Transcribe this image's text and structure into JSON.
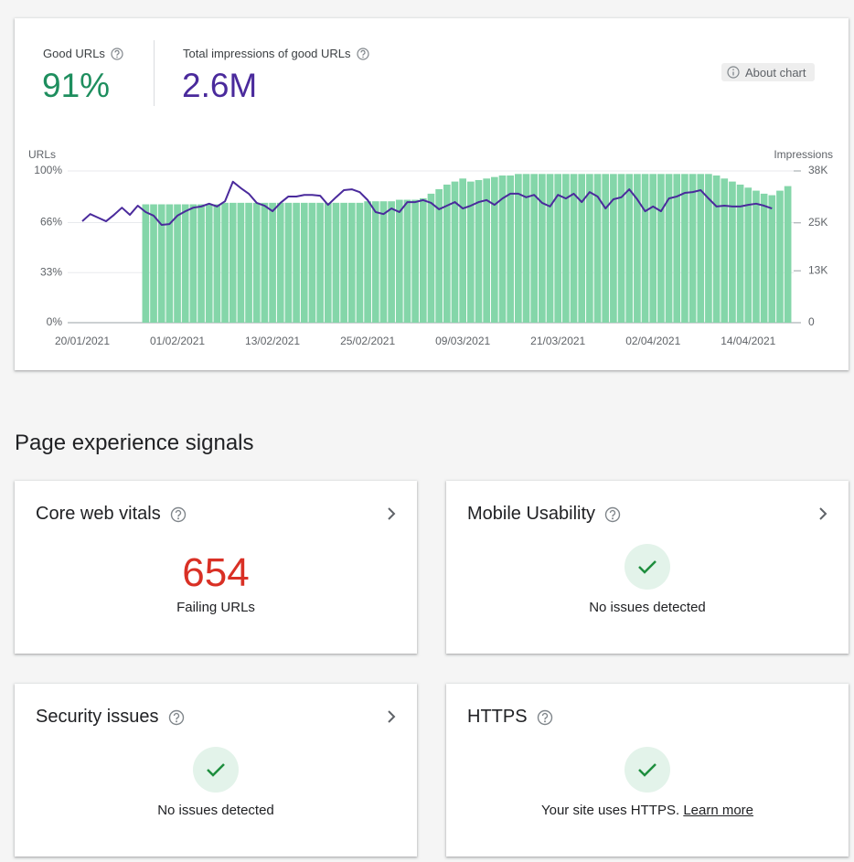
{
  "summary": {
    "good_urls": {
      "label": "Good URLs",
      "value": "91%"
    },
    "impressions": {
      "label": "Total impressions of good URLs",
      "value": "2.6M"
    },
    "about_chart": "About chart"
  },
  "chart_data": {
    "type": "bar",
    "y_label": "URLs",
    "y2_label": "Impressions",
    "categories": [
      "20/01/2021",
      null,
      null,
      null,
      null,
      null,
      null,
      null,
      null,
      null,
      null,
      null,
      "01/02/2021",
      null,
      null,
      null,
      null,
      null,
      null,
      null,
      null,
      null,
      null,
      null,
      "13/02/2021",
      null,
      null,
      null,
      null,
      null,
      null,
      null,
      null,
      null,
      null,
      null,
      "25/02/2021",
      null,
      null,
      null,
      null,
      null,
      null,
      null,
      null,
      null,
      null,
      null,
      "09/03/2021",
      null,
      null,
      null,
      null,
      null,
      null,
      null,
      null,
      null,
      null,
      null,
      "21/03/2021",
      null,
      null,
      null,
      null,
      null,
      null,
      null,
      null,
      null,
      null,
      null,
      "02/04/2021",
      null,
      null,
      null,
      null,
      null,
      null,
      null,
      null,
      null,
      null,
      null,
      "14/04/2021",
      null,
      null,
      null,
      null,
      null
    ],
    "series": [
      {
        "type": "bar",
        "color": "#84d6a9",
        "values": [
          null,
          null,
          null,
          null,
          null,
          null,
          null,
          null,
          78,
          78,
          78,
          78,
          78,
          78,
          78,
          78,
          78,
          78,
          79,
          79,
          79,
          79,
          79,
          79,
          79,
          79,
          79,
          79,
          79,
          79,
          79,
          79,
          79,
          79,
          79,
          79,
          80,
          80,
          80,
          80,
          81,
          81,
          81,
          82,
          85,
          88,
          91,
          93,
          95,
          93,
          94,
          95,
          96,
          97,
          97,
          98,
          98,
          98,
          98,
          98,
          98,
          98,
          98,
          98,
          98,
          98,
          98,
          98,
          98,
          98,
          98,
          98,
          98,
          98,
          98,
          98,
          98,
          98,
          98,
          98,
          97,
          95,
          93,
          91,
          89,
          87,
          85,
          84,
          87,
          90
        ]
      },
      {
        "type": "line",
        "color": "#4a2a9c",
        "axis": "y2",
        "values": [
          25400,
          27200,
          26300,
          25400,
          27000,
          28800,
          27000,
          29300,
          27700,
          26800,
          24500,
          24700,
          26800,
          27900,
          28800,
          29100,
          29800,
          29100,
          30400,
          35300,
          33700,
          32300,
          30000,
          29300,
          27900,
          30000,
          31600,
          31600,
          32000,
          32000,
          31800,
          29500,
          31400,
          33200,
          33400,
          32700,
          30700,
          27700,
          27200,
          28600,
          27700,
          30200,
          30200,
          30700,
          30000,
          28400,
          29300,
          30200,
          28600,
          29300,
          30200,
          30700,
          29500,
          31100,
          32300,
          32300,
          31400,
          32000,
          30000,
          29100,
          32000,
          31100,
          32300,
          30200,
          32700,
          31600,
          28600,
          30900,
          31400,
          33400,
          30900,
          27900,
          29100,
          27900,
          31100,
          31600,
          32500,
          32700,
          33200,
          31100,
          29100,
          29300,
          29100,
          29100,
          29500,
          29800,
          29300,
          28600,
          null,
          null
        ]
      }
    ],
    "ylim": [
      0,
      100
    ],
    "yticks": [
      {
        "value": 0,
        "label": "0%"
      },
      {
        "value": 33,
        "label": "33%"
      },
      {
        "value": 66,
        "label": "66%"
      },
      {
        "value": 100,
        "label": "100%"
      }
    ],
    "y2lim": [
      0,
      38000
    ],
    "y2ticks": [
      0,
      {
        "value": 13000,
        "label": "13K"
      },
      {
        "value": 25000,
        "label": "25K"
      },
      {
        "value": 38000,
        "label": "38K"
      }
    ],
    "grid": true
  },
  "section_title": "Page experience signals",
  "cards": [
    {
      "title": "Core web vitals",
      "value": "654",
      "caption": "Failing URLs"
    },
    {
      "title": "Mobile Usability",
      "status": "No issues detected"
    },
    {
      "title": "Security issues",
      "status": "No issues detected"
    },
    {
      "title": "HTTPS",
      "status": "Your site uses HTTPS.",
      "link": "Learn more"
    }
  ]
}
